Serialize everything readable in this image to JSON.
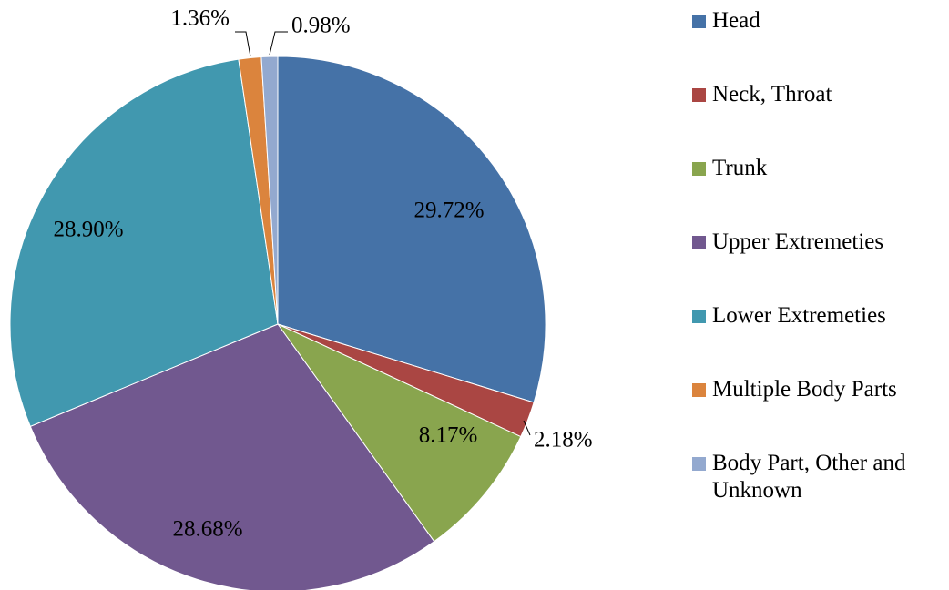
{
  "chart_data": {
    "type": "pie",
    "categories": [
      "Head",
      "Neck, Throat",
      "Trunk",
      "Upper Extremeties",
      "Lower Extremeties",
      "Multiple Body Parts",
      "Body Part, Other and Unknown"
    ],
    "values": [
      29.72,
      2.18,
      8.17,
      28.68,
      28.9,
      1.36,
      0.98
    ],
    "value_labels": [
      "29.72%",
      "2.18%",
      "8.17%",
      "28.68%",
      "28.90%",
      "1.36%",
      "0.98%"
    ],
    "colors": [
      "#4572a7",
      "#aa4643",
      "#89a54e",
      "#71588f",
      "#4198af",
      "#db843d",
      "#93a9cf"
    ],
    "legend": "right"
  }
}
